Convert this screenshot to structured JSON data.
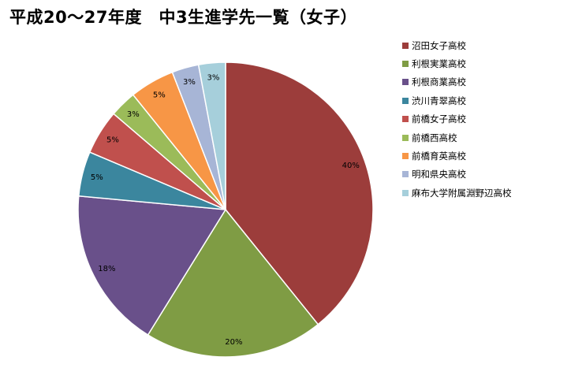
{
  "chart_data": {
    "type": "pie",
    "title": "平成20～27年度　中3生進学先一覧（女子）",
    "categories": [
      "沼田女子高校",
      "利根実業高校",
      "利根商業高校",
      "渋川青翠高校",
      "前橋女子高校",
      "前橋西高校",
      "前橋育英高校",
      "明和県央高校",
      "麻布大学附属淵野辺高校"
    ],
    "values": [
      40,
      20,
      18,
      5,
      5,
      3,
      5,
      3,
      3
    ],
    "data_labels": [
      "40%",
      "20%",
      "18%",
      "5%",
      "5%",
      "3%",
      "5%",
      "3%",
      "3%"
    ],
    "colors": [
      "#9c3d3b",
      "#7f9c44",
      "#69508a",
      "#3b869e",
      "#c0504d",
      "#9bbb59",
      "#f79646",
      "#a7b5d6",
      "#a6cfdb"
    ],
    "legend_position": "right",
    "start_angle": "12 o'clock, clockwise"
  }
}
